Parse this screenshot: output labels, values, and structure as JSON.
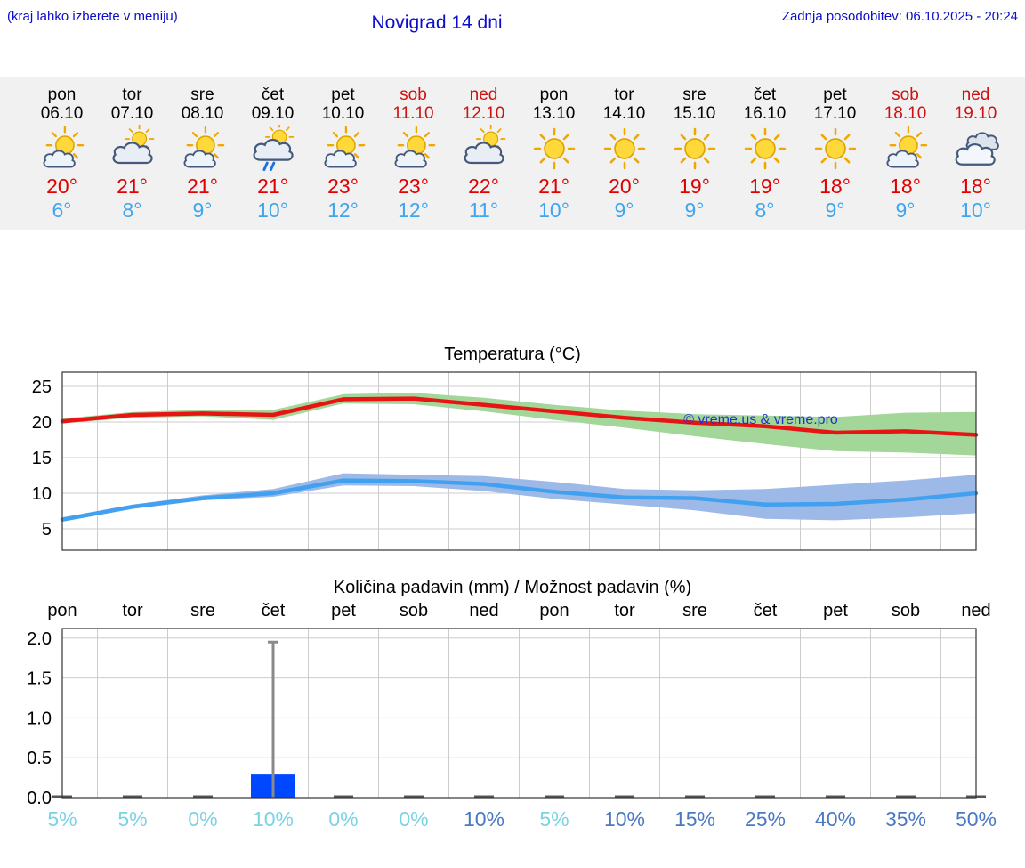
{
  "header": {
    "hint": "(kraj lahko izberete v meniju)",
    "title": "Novigrad 14 dni",
    "updated": "Zadnja posodobitev: 06.10.2025 - 20:24"
  },
  "colors": {
    "header_text": "#0d0dcc",
    "high_temp": "#e00000",
    "low_temp": "#3fa5ee",
    "weekend_text": "#cc1111",
    "strip_background": "#f1f1f1"
  },
  "forecast": {
    "days": [
      {
        "name": "pon",
        "date": "06.10",
        "weekend": false,
        "icon": "sun-cloud",
        "hi": "20°",
        "lo": "6°"
      },
      {
        "name": "tor",
        "date": "07.10",
        "weekend": false,
        "icon": "cloud-sun",
        "hi": "21°",
        "lo": "8°"
      },
      {
        "name": "sre",
        "date": "08.10",
        "weekend": false,
        "icon": "sun-cloud",
        "hi": "21°",
        "lo": "9°"
      },
      {
        "name": "čet",
        "date": "09.10",
        "weekend": false,
        "icon": "rain-sun",
        "hi": "21°",
        "lo": "10°"
      },
      {
        "name": "pet",
        "date": "10.10",
        "weekend": false,
        "icon": "sun-cloud",
        "hi": "23°",
        "lo": "12°"
      },
      {
        "name": "sob",
        "date": "11.10",
        "weekend": true,
        "icon": "sun-cloud",
        "hi": "23°",
        "lo": "12°"
      },
      {
        "name": "ned",
        "date": "12.10",
        "weekend": true,
        "icon": "cloud-sun",
        "hi": "22°",
        "lo": "11°"
      },
      {
        "name": "pon",
        "date": "13.10",
        "weekend": false,
        "icon": "sun",
        "hi": "21°",
        "lo": "10°"
      },
      {
        "name": "tor",
        "date": "14.10",
        "weekend": false,
        "icon": "sun",
        "hi": "20°",
        "lo": "9°"
      },
      {
        "name": "sre",
        "date": "15.10",
        "weekend": false,
        "icon": "sun",
        "hi": "19°",
        "lo": "9°"
      },
      {
        "name": "čet",
        "date": "16.10",
        "weekend": false,
        "icon": "sun",
        "hi": "19°",
        "lo": "8°"
      },
      {
        "name": "pet",
        "date": "17.10",
        "weekend": false,
        "icon": "sun",
        "hi": "18°",
        "lo": "9°"
      },
      {
        "name": "sob",
        "date": "18.10",
        "weekend": true,
        "icon": "sun-cloud",
        "hi": "18°",
        "lo": "9°"
      },
      {
        "name": "ned",
        "date": "19.10",
        "weekend": true,
        "icon": "cloudy",
        "hi": "18°",
        "lo": "10°"
      }
    ]
  },
  "chart_data": [
    {
      "type": "line",
      "title": "Temperatura (°C)",
      "x_labels": [
        "pon",
        "tor",
        "sre",
        "čet",
        "pet",
        "sob",
        "ned",
        "pon",
        "tor",
        "sre",
        "čet",
        "pet",
        "sob",
        "ned"
      ],
      "ylim": [
        2,
        27
      ],
      "yticks": [
        5,
        10,
        15,
        20,
        25
      ],
      "grid": true,
      "legend": "none",
      "watermark": "© vreme.us & vreme.pro",
      "series": [
        {
          "name": "max temperature",
          "color": "#e81414",
          "values": [
            20.1,
            21.0,
            21.2,
            21.0,
            23.2,
            23.3,
            22.4,
            21.5,
            20.6,
            19.9,
            19.4,
            18.5,
            18.7,
            18.2
          ],
          "band": {
            "color": "#a3d699",
            "upper": [
              20.5,
              21.4,
              21.7,
              21.7,
              23.9,
              24.1,
              23.4,
              22.4,
              21.6,
              21.1,
              20.9,
              20.7,
              21.3,
              21.4
            ],
            "lower": [
              19.8,
              20.6,
              20.8,
              20.3,
              22.6,
              22.5,
              21.5,
              20.3,
              19.2,
              18.0,
              16.9,
              15.9,
              15.7,
              15.3
            ]
          }
        },
        {
          "name": "min temperature",
          "color": "#41a1f0",
          "values": [
            6.3,
            8.1,
            9.3,
            10.0,
            11.8,
            11.7,
            11.3,
            10.2,
            9.4,
            9.3,
            8.4,
            8.5,
            9.1,
            10.0
          ],
          "band": {
            "color": "#9db9e8",
            "upper": [
              6.6,
              8.4,
              9.7,
              10.6,
              12.8,
              12.6,
              12.4,
              11.6,
              10.6,
              10.4,
              10.6,
              11.2,
              11.8,
              12.6
            ],
            "lower": [
              6.0,
              7.8,
              9.0,
              9.5,
              11.1,
              11.0,
              10.3,
              9.2,
              8.4,
              7.6,
              6.4,
              6.2,
              6.6,
              7.2
            ]
          }
        }
      ]
    },
    {
      "type": "bar",
      "title": "Količina padavin (mm) / Možnost padavin (%)",
      "x_labels": [
        "pon",
        "tor",
        "sre",
        "čet",
        "pet",
        "sob",
        "ned",
        "pon",
        "tor",
        "sre",
        "čet",
        "pet",
        "sob",
        "ned"
      ],
      "ylim": [
        0,
        2.12
      ],
      "yticks": [
        0,
        0.5,
        1,
        1.5,
        2
      ],
      "ytick_labels": [
        "0.0",
        "0.5",
        "1.0",
        "1.5",
        "2.0"
      ],
      "grid": true,
      "bar_color": "#0048ff",
      "whisker_color": "#8a8a8a",
      "values_mm": [
        0,
        0,
        0,
        0.3,
        0,
        0,
        0,
        0,
        0,
        0,
        0,
        0,
        0,
        0
      ],
      "whisker_max_mm": [
        0,
        0,
        0,
        1.95,
        0,
        0,
        0,
        0,
        0,
        0,
        0,
        0,
        0,
        0
      ],
      "probabilities": [
        {
          "label": "5%",
          "color": "#7bd2e4"
        },
        {
          "label": "5%",
          "color": "#7bd2e4"
        },
        {
          "label": "0%",
          "color": "#7bd2e4"
        },
        {
          "label": "10%",
          "color": "#7bd2e4"
        },
        {
          "label": "0%",
          "color": "#7bd2e4"
        },
        {
          "label": "0%",
          "color": "#7bd2e4"
        },
        {
          "label": "10%",
          "color": "#4a78c2"
        },
        {
          "label": "5%",
          "color": "#7bd2e4"
        },
        {
          "label": "10%",
          "color": "#4a78c2"
        },
        {
          "label": "15%",
          "color": "#4a78c2"
        },
        {
          "label": "25%",
          "color": "#4a78c2"
        },
        {
          "label": "40%",
          "color": "#4a78c2"
        },
        {
          "label": "35%",
          "color": "#4a78c2"
        },
        {
          "label": "50%",
          "color": "#4a78c2"
        }
      ]
    }
  ]
}
